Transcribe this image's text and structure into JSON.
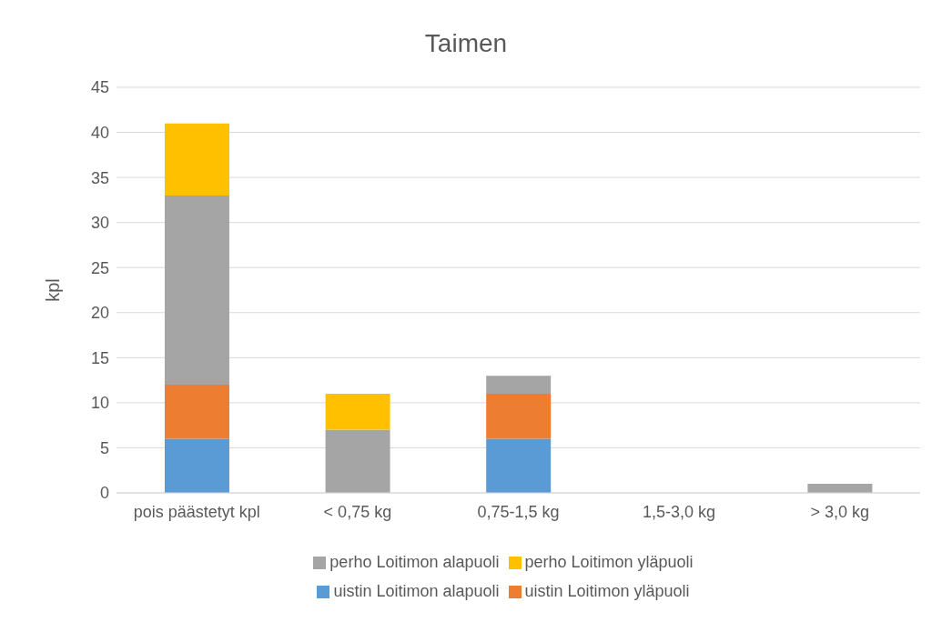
{
  "chart_data": {
    "type": "bar",
    "title": "Taimen",
    "ylabel": "kpl",
    "stacked": true,
    "categories": [
      "pois päästetyt kpl",
      "< 0,75 kg",
      "0,75-1,5 kg",
      "1,5-3,0 kg",
      "> 3,0 kg"
    ],
    "series": [
      {
        "name": "uistin Loitimon alapuoli",
        "color": "#5b9bd5",
        "values": [
          6,
          0,
          6,
          0,
          0
        ]
      },
      {
        "name": "uistin Loitimon yläpuoli",
        "color": "#ed7d31",
        "values": [
          6,
          0,
          5,
          0,
          0
        ]
      },
      {
        "name": "perho Loitimon alapuoli",
        "color": "#a5a5a5",
        "values": [
          21,
          7,
          2,
          0,
          1
        ]
      },
      {
        "name": "perho Loitimon yläpuoli",
        "color": "#ffc000",
        "values": [
          8,
          4,
          0,
          0,
          0
        ]
      }
    ],
    "ylim": [
      0,
      45
    ],
    "yticks": [
      0,
      5,
      10,
      15,
      20,
      25,
      30,
      35,
      40,
      45
    ],
    "grid": "y",
    "legend": "bottom"
  }
}
